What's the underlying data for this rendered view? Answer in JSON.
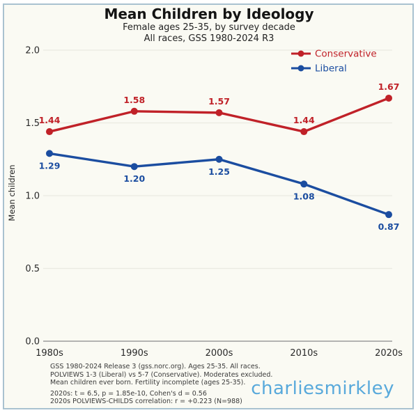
{
  "header": {
    "title": "Mean Children by Ideology",
    "subtitle1": "Female ages 25-35, by survey decade",
    "subtitle2": "All races, GSS 1980-2024 R3"
  },
  "watermark": "charliesmirkley",
  "footnotes": [
    "GSS 1980-2024 Release 3 (gss.norc.org). Ages 25-35. All races.",
    "POLVIEWS 1-3 (Liberal) vs 5-7 (Conservative). Moderates excluded.",
    "Mean children ever born. Fertility incomplete (ages 25-35).",
    "2020s: t = 6.5, p = 1.85e-10, Cohen's d = 0.56",
    "2020s POLVIEWS-CHILDS correlation: r = +0.223 (N=988)"
  ],
  "chart_data": {
    "type": "line",
    "title": "Mean Children by Ideology",
    "categories": [
      "1980s",
      "1990s",
      "2000s",
      "2010s",
      "2020s"
    ],
    "series": [
      {
        "name": "Conservative",
        "color": "#c02128",
        "values": [
          1.44,
          1.58,
          1.57,
          1.44,
          1.67
        ],
        "label_position": "above"
      },
      {
        "name": "Liberal",
        "color": "#1b4da0",
        "values": [
          1.29,
          1.2,
          1.25,
          1.08,
          0.87
        ],
        "label_position": "below"
      }
    ],
    "xlabel": "",
    "ylabel": "Mean children",
    "ylim": [
      0.0,
      2.0
    ],
    "yticks": [
      0.0,
      0.5,
      1.0,
      1.5,
      2.0
    ],
    "grid": "horizontal",
    "legend_position": "top-right",
    "colors": {
      "background": "#fafaf3",
      "frame_border": "#a9c2d0",
      "gridline": "#eaeae1",
      "axis": "#9b9b9b",
      "watermark": "#58a9db"
    }
  }
}
